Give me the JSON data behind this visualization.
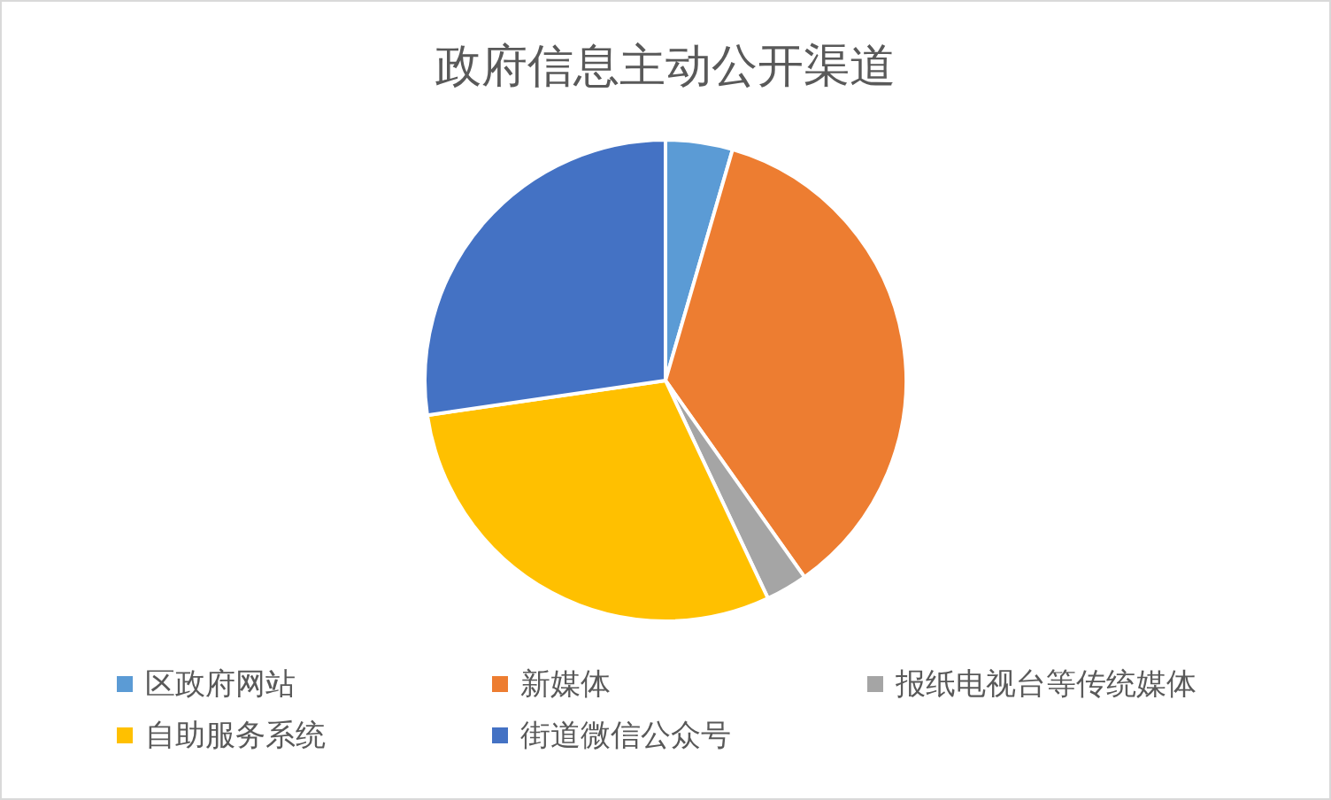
{
  "chart_data": {
    "type": "pie",
    "title": "政府信息主动公开渠道",
    "categories": [
      "区政府网站",
      "新媒体",
      "报纸电视台等传统媒体",
      "自助服务系统",
      "街道微信公众号"
    ],
    "values": [
      4.5,
      35.7,
      2.8,
      29.7,
      27.3
    ],
    "colors": [
      "#5b9bd5",
      "#ed7d31",
      "#a5a5a5",
      "#ffc000",
      "#4472c4"
    ],
    "legend": "bottom"
  }
}
